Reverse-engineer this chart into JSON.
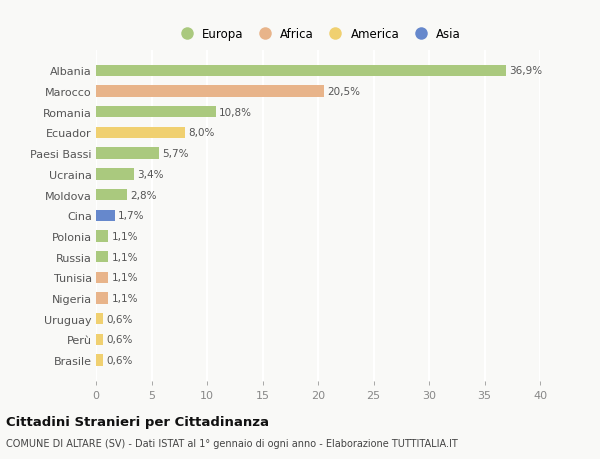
{
  "countries": [
    "Albania",
    "Marocco",
    "Romania",
    "Ecuador",
    "Paesi Bassi",
    "Ucraina",
    "Moldova",
    "Cina",
    "Polonia",
    "Russia",
    "Tunisia",
    "Nigeria",
    "Uruguay",
    "Perù",
    "Brasile"
  ],
  "values": [
    36.9,
    20.5,
    10.8,
    8.0,
    5.7,
    3.4,
    2.8,
    1.7,
    1.1,
    1.1,
    1.1,
    1.1,
    0.6,
    0.6,
    0.6
  ],
  "continents": [
    "Europa",
    "Africa",
    "Europa",
    "America",
    "Europa",
    "Europa",
    "Europa",
    "Asia",
    "Europa",
    "Europa",
    "Africa",
    "Africa",
    "America",
    "America",
    "America"
  ],
  "labels": [
    "36,9%",
    "20,5%",
    "10,8%",
    "8,0%",
    "5,7%",
    "3,4%",
    "2,8%",
    "1,7%",
    "1,1%",
    "1,1%",
    "1,1%",
    "1,1%",
    "0,6%",
    "0,6%",
    "0,6%"
  ],
  "continent_colors": {
    "Europa": "#aac97e",
    "Africa": "#e8b48a",
    "America": "#f0d070",
    "Asia": "#6688cc"
  },
  "legend_items": [
    "Europa",
    "Africa",
    "America",
    "Asia"
  ],
  "legend_colors": [
    "#aac97e",
    "#e8b48a",
    "#f0d070",
    "#6688cc"
  ],
  "title": "Cittadini Stranieri per Cittadinanza",
  "subtitle": "COMUNE DI ALTARE (SV) - Dati ISTAT al 1° gennaio di ogni anno - Elaborazione TUTTITALIA.IT",
  "xlim": [
    0,
    40
  ],
  "xticks": [
    0,
    5,
    10,
    15,
    20,
    25,
    30,
    35,
    40
  ],
  "background_color": "#f9f9f7",
  "grid_color": "#ffffff",
  "bar_height": 0.55
}
